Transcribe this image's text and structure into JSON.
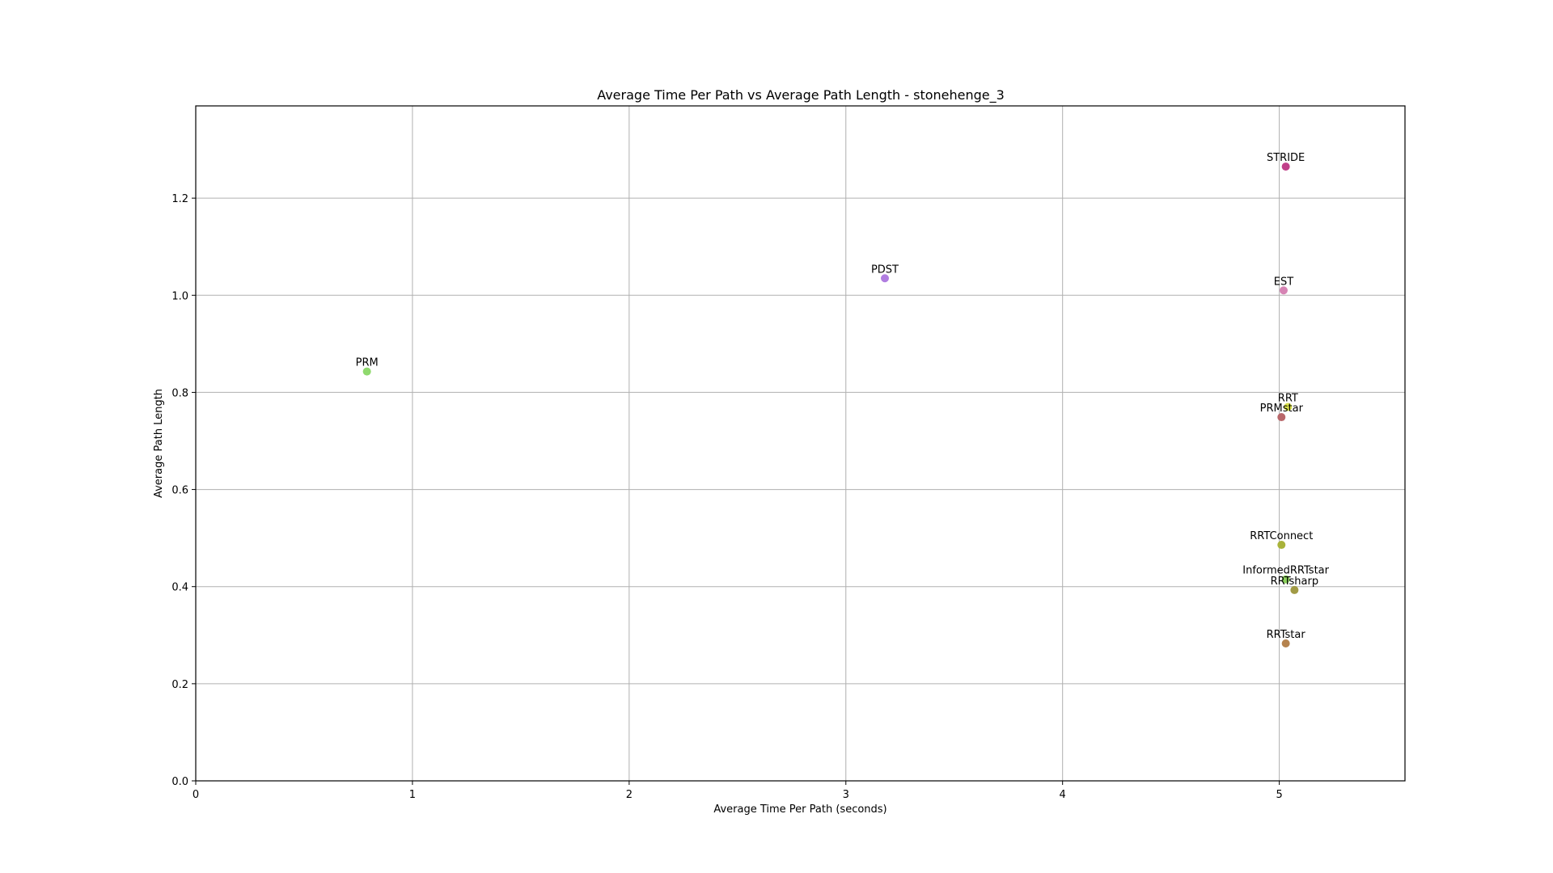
{
  "chart_data": {
    "type": "scatter",
    "title": "Average Time Per Path vs Average Path Length - stonehenge_3",
    "xlabel": "Average Time Per Path (seconds)",
    "ylabel": "Average Path Length",
    "xlim": [
      0,
      5.58
    ],
    "ylim": [
      0,
      1.39
    ],
    "xticks": [
      0,
      1,
      2,
      3,
      4,
      5
    ],
    "yticks": [
      0.0,
      0.2,
      0.4,
      0.6,
      0.8,
      1.0,
      1.2
    ],
    "xtick_labels": [
      "0",
      "1",
      "2",
      "3",
      "4",
      "5"
    ],
    "ytick_labels": [
      "0.0",
      "0.2",
      "0.4",
      "0.6",
      "0.8",
      "1.0",
      "1.2"
    ],
    "grid": true,
    "points": [
      {
        "label": "STRIDE",
        "x": 5.03,
        "y": 1.265,
        "color": "#c1408a"
      },
      {
        "label": "PDST",
        "x": 3.18,
        "y": 1.035,
        "color": "#b07de0"
      },
      {
        "label": "EST",
        "x": 5.02,
        "y": 1.01,
        "color": "#d684b4"
      },
      {
        "label": "PRM",
        "x": 0.79,
        "y": 0.843,
        "color": "#8fd96e"
      },
      {
        "label": "RRT",
        "x": 5.04,
        "y": 0.77,
        "color": "#d8e04a"
      },
      {
        "label": "PRMstar",
        "x": 5.01,
        "y": 0.749,
        "color": "#b8676a"
      },
      {
        "label": "RRTConnect",
        "x": 5.01,
        "y": 0.486,
        "color": "#a9b33a"
      },
      {
        "label": "InformedRRTstar",
        "x": 5.03,
        "y": 0.415,
        "color": "#8bd05c"
      },
      {
        "label": "RRTsharp",
        "x": 5.07,
        "y": 0.393,
        "color": "#a19a45"
      },
      {
        "label": "RRTstar",
        "x": 5.03,
        "y": 0.283,
        "color": "#b5834e"
      }
    ]
  }
}
